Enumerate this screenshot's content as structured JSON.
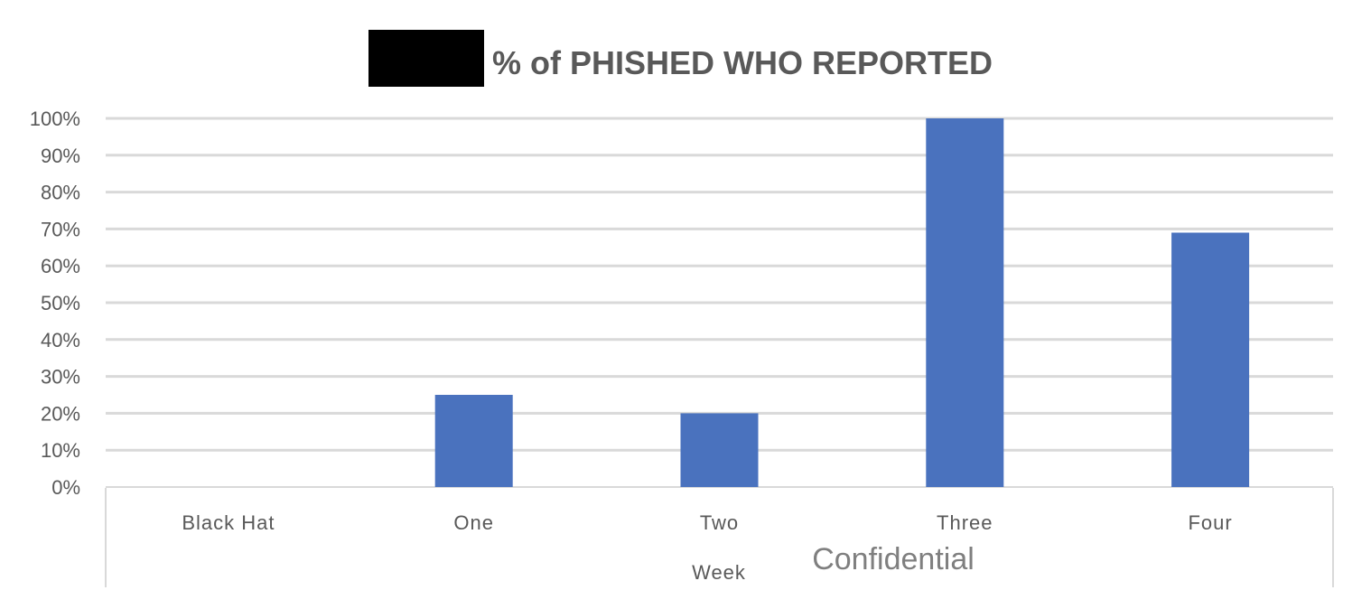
{
  "chart_data": {
    "type": "bar",
    "title": "% of PHISHED WHO REPORTED",
    "title_redacted_prefix": true,
    "xlabel": "Week",
    "ylabel": "",
    "categories": [
      "Black Hat",
      "One",
      "Two",
      "Three",
      "Four"
    ],
    "values": [
      0,
      25,
      20,
      100,
      69
    ],
    "ylim": [
      0,
      100
    ],
    "y_tick_step": 10,
    "y_tick_format": "percent",
    "y_ticks": [
      "0%",
      "10%",
      "20%",
      "30%",
      "40%",
      "50%",
      "60%",
      "70%",
      "80%",
      "90%",
      "100%"
    ],
    "grid": true,
    "legend": "none",
    "bar_color": "#4a72be",
    "grid_color": "#d9d9d9"
  },
  "watermark": "Confidential"
}
